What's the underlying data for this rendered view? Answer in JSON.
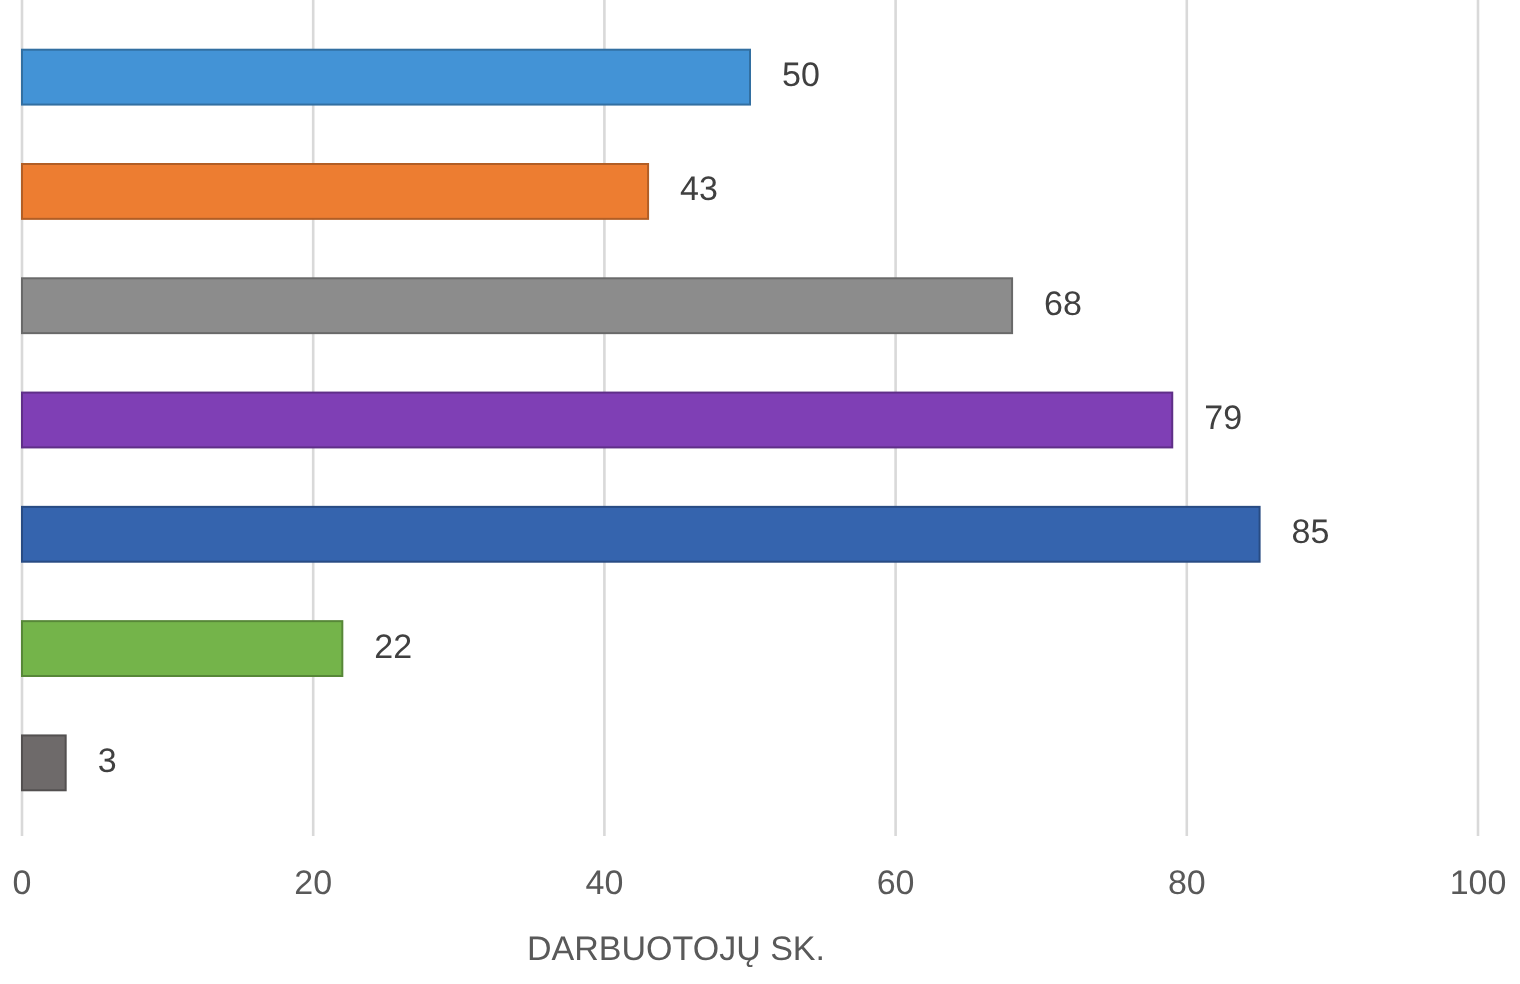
{
  "chart_data": {
    "type": "bar",
    "orientation": "horizontal",
    "xlabel": "DARBUOTOJŲ SK.",
    "categories": [
      null,
      null,
      null,
      null,
      null,
      null,
      null
    ],
    "values": [
      50,
      43,
      68,
      79,
      85,
      22,
      3
    ],
    "colors": [
      "#4393d6",
      "#ed7d31",
      "#8c8c8c",
      "#7f3fb5",
      "#3564ae",
      "#74b44a",
      "#6e6a6a"
    ],
    "xlim": [
      0,
      100
    ],
    "xticks": [
      0,
      20,
      40,
      60,
      80,
      100
    ],
    "grid": "x",
    "data_labels": true
  }
}
